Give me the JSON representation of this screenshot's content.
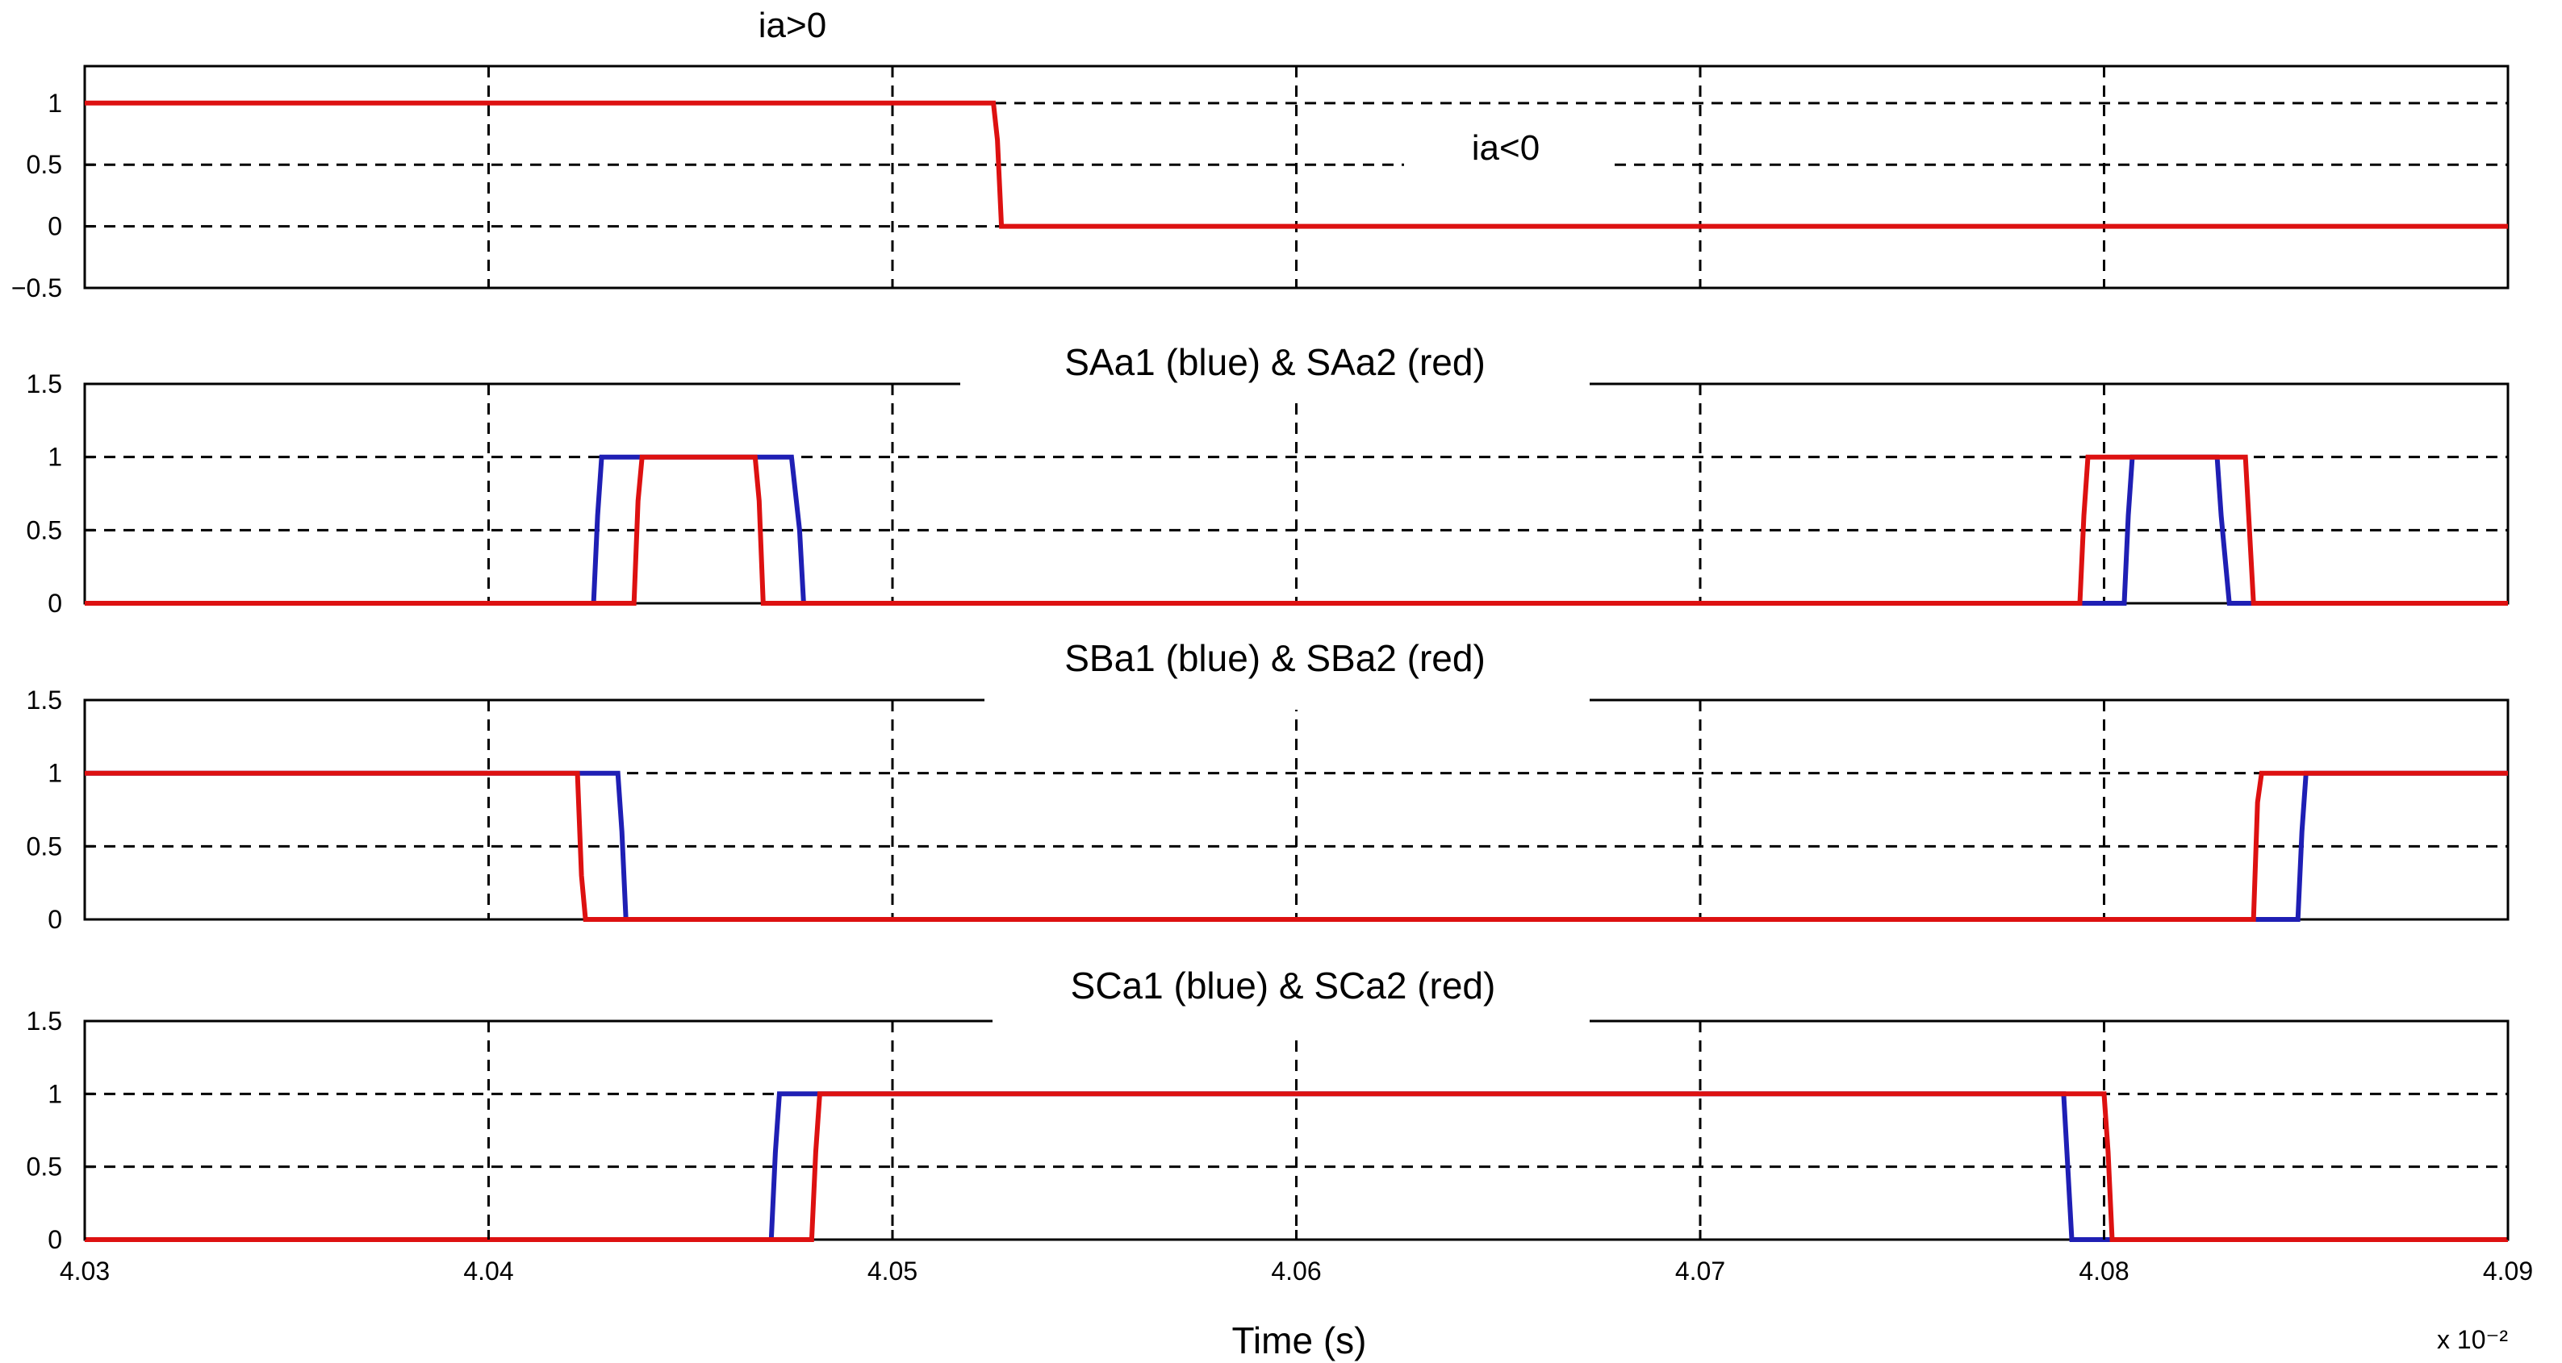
{
  "chart_data": [
    {
      "type": "line",
      "title": "",
      "ylim": [
        -0.5,
        1.3
      ],
      "yticks": [
        "1",
        "0.5",
        "0",
        "−0.5"
      ],
      "annotations": [
        {
          "text": "ia>0",
          "x": 4.048,
          "y": 1.5
        },
        {
          "text": "ia<0",
          "x": 4.0648,
          "y": 0.55
        }
      ],
      "series": [
        {
          "color": "#dd1111",
          "points": [
            [
              4.03,
              1
            ],
            [
              4.0525,
              1
            ],
            [
              4.0526,
              0.7
            ],
            [
              4.0527,
              0
            ],
            [
              4.09,
              0
            ]
          ]
        }
      ]
    },
    {
      "type": "line",
      "title": "SAa1 (blue) & SAa2 (red)",
      "ylim": [
        0,
        1.5
      ],
      "yticks": [
        "1.5",
        "1",
        "0.5",
        "0"
      ],
      "series": [
        {
          "name": "SAa1",
          "color": "#1f1fb4",
          "points": [
            [
              4.03,
              0
            ],
            [
              4.0426,
              0
            ],
            [
              4.0427,
              0.6
            ],
            [
              4.0428,
              1
            ],
            [
              4.0475,
              1
            ],
            [
              4.0477,
              0.5
            ],
            [
              4.0478,
              0
            ],
            [
              4.0796,
              0
            ],
            [
              4.0797,
              0
            ],
            [
              4.0805,
              0
            ],
            [
              4.0806,
              0.6
            ],
            [
              4.0807,
              1
            ],
            [
              4.0828,
              1
            ],
            [
              4.0829,
              0.6
            ],
            [
              4.0831,
              0
            ],
            [
              4.09,
              0
            ]
          ]
        },
        {
          "name": "SAa2",
          "color": "#dd1111",
          "points": [
            [
              4.03,
              0
            ],
            [
              4.0436,
              0
            ],
            [
              4.0437,
              0.7
            ],
            [
              4.0438,
              1
            ],
            [
              4.0466,
              1
            ],
            [
              4.0467,
              0.7
            ],
            [
              4.0468,
              0
            ],
            [
              4.0794,
              0
            ],
            [
              4.0795,
              0.6
            ],
            [
              4.0796,
              1
            ],
            [
              4.0835,
              1
            ],
            [
              4.0836,
              0.5
            ],
            [
              4.0837,
              0
            ],
            [
              4.09,
              0
            ]
          ]
        }
      ]
    },
    {
      "type": "line",
      "title": "SBa1 (blue) & SBa2 (red)",
      "ylim": [
        0,
        1.5
      ],
      "yticks": [
        "1.5",
        "1",
        "0.5",
        "0"
      ],
      "series": [
        {
          "name": "SBa1",
          "color": "#1f1fb4",
          "points": [
            [
              4.03,
              1
            ],
            [
              4.0432,
              1
            ],
            [
              4.0433,
              0.6
            ],
            [
              4.0434,
              0
            ],
            [
              4.0848,
              0
            ],
            [
              4.0849,
              0.6
            ],
            [
              4.085,
              1
            ],
            [
              4.09,
              1
            ]
          ]
        },
        {
          "name": "SBa2",
          "color": "#dd1111",
          "points": [
            [
              4.03,
              1
            ],
            [
              4.0422,
              1
            ],
            [
              4.0423,
              0.3
            ],
            [
              4.0424,
              0
            ],
            [
              4.0837,
              0
            ],
            [
              4.0838,
              0.8
            ],
            [
              4.0839,
              1
            ],
            [
              4.09,
              1
            ]
          ]
        }
      ]
    },
    {
      "type": "line",
      "title": "SCa1 (blue) & SCa2 (red)",
      "ylim": [
        0,
        1.5
      ],
      "yticks": [
        "1.5",
        "1",
        "0.5",
        "0"
      ],
      "xticks": [
        "4.03",
        "4.04",
        "4.05",
        "4.06",
        "4.07",
        "4.08",
        "4.09"
      ],
      "xlabel": "Time (s)",
      "x_multiplier": "x 10⁻²",
      "series": [
        {
          "name": "SCa1",
          "color": "#1f1fb4",
          "points": [
            [
              4.03,
              0
            ],
            [
              4.047,
              0
            ],
            [
              4.0471,
              0.6
            ],
            [
              4.0472,
              1
            ],
            [
              4.079,
              1
            ],
            [
              4.0791,
              0.5
            ],
            [
              4.0792,
              0
            ],
            [
              4.09,
              0
            ]
          ]
        },
        {
          "name": "SCa2",
          "color": "#dd1111",
          "points": [
            [
              4.03,
              0
            ],
            [
              4.048,
              0
            ],
            [
              4.0481,
              0.6
            ],
            [
              4.0482,
              1
            ],
            [
              4.08,
              1
            ],
            [
              4.0801,
              0.6
            ],
            [
              4.0802,
              0
            ],
            [
              4.09,
              0
            ]
          ]
        }
      ]
    }
  ]
}
